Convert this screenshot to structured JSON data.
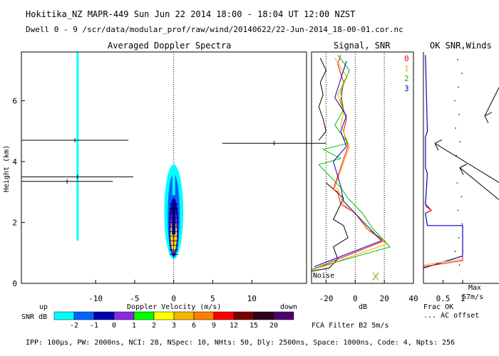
{
  "header": {
    "line1": "Hokitika_NZ  MAPR-449  Sun Jun 22 2014 18:00 - 18:04 UT 12:00 NZST",
    "line2": "Dwell  0 - 9   /scr/data/modular_prof/raw/wind/20140622/22-Jun-2014_18-00-01.cor.nc"
  },
  "footer": {
    "params": "IPP: 100μs, PW: 2000ns, NCI: 28, NSpec: 10, NHts: 50, Dly: 2500ns, Space: 1000ns, Code: 4, Npts: 256",
    "fca": "FCA Filter B2  5m/s"
  },
  "colors": {
    "snr_scale": [
      "#00ffff",
      "#0064ff",
      "#0000b0",
      "#8a2be2",
      "#00ff00",
      "#ffff00",
      "#f7b500",
      "#ff8000",
      "#ff0000",
      "#7a0000",
      "#30001a",
      "#50006a"
    ],
    "dwell_traces": [
      "#ff0000",
      "#ffa500",
      "#00c000",
      "#0000c0"
    ],
    "black": "#000000"
  },
  "chart_data": [
    {
      "type": "heatmap",
      "title": "Averaged Doppler Spectra",
      "xlabel": "Doppler Velocity (m/s)",
      "ylabel": "Height (km)",
      "xlim": [
        -19.5,
        17
      ],
      "ylim": [
        0,
        7.6
      ],
      "xticks": [
        "-10",
        "-5",
        "0",
        "5",
        "10"
      ],
      "xtick_values": [
        -10,
        -5,
        0,
        5,
        10
      ],
      "yticks": [
        "0",
        "2",
        "4",
        "6"
      ],
      "ytick_values": [
        0,
        2,
        4,
        6
      ],
      "left_label": "up",
      "right_label": "down",
      "zero_line": 0,
      "spectrum_core": {
        "velocity_center": 0,
        "height_range": [
          0.8,
          3.9
        ]
      },
      "vertical_artifact": {
        "velocity": -12.3,
        "height_range": [
          1.4,
          7.6
        ]
      },
      "error_bars": [
        {
          "height": 4.7,
          "velocity_range": [
            -19.5,
            -5.8
          ]
        },
        {
          "height": 4.6,
          "velocity_range": [
            6.2,
            19.5
          ]
        },
        {
          "height": 3.5,
          "velocity_range": [
            -19.5,
            -5.2
          ]
        },
        {
          "height": 3.35,
          "velocity_range": [
            -19.5,
            -7.8
          ]
        }
      ]
    },
    {
      "type": "line",
      "title": "Signal, SNR",
      "xlabel": "dB",
      "xlim": [
        -30,
        40
      ],
      "ylim": [
        0,
        7.6
      ],
      "xticks": [
        "-20",
        "0",
        "20",
        "40"
      ],
      "xtick_values": [
        -20,
        0,
        20,
        40
      ],
      "dotted_lines": [
        -20,
        0,
        20
      ],
      "noise_label": "Noise",
      "dwell_labels": [
        "0",
        "1",
        "2",
        "3"
      ],
      "series": [
        {
          "name": "signal",
          "points": [
            [
              -30,
              0.4
            ],
            [
              -18,
              0.5
            ],
            [
              -12,
              0.8
            ],
            [
              -15,
              1.2
            ],
            [
              -5,
              1.5
            ],
            [
              -8,
              1.9
            ],
            [
              -15,
              2.1
            ],
            [
              -12,
              2.4
            ],
            [
              -8,
              2.8
            ],
            [
              -15,
              3.1
            ],
            [
              -20,
              3.3
            ]
          ]
        },
        {
          "name": "signal_upper",
          "points": [
            [
              -25,
              4.7
            ],
            [
              -20,
              5.0
            ],
            [
              -22,
              5.4
            ],
            [
              -25,
              5.8
            ],
            [
              -22,
              6.2
            ],
            [
              -24,
              6.6
            ],
            [
              -20,
              7.0
            ],
            [
              -24,
              7.4
            ]
          ]
        },
        {
          "name": "dwell 0",
          "points": [
            [
              -30,
              0.45
            ],
            [
              20,
              1.4
            ],
            [
              8,
              1.8
            ],
            [
              0,
              2.3
            ],
            [
              -10,
              2.6
            ],
            [
              -12,
              3.0
            ],
            [
              -15,
              3.1
            ],
            [
              -5,
              4.5
            ],
            [
              -8,
              5.0
            ],
            [
              -6,
              5.4
            ],
            [
              -10,
              6.0
            ],
            [
              -8,
              6.6
            ],
            [
              -12,
              7.2
            ],
            [
              -10,
              7.5
            ]
          ]
        },
        {
          "name": "dwell 1",
          "points": [
            [
              -28,
              0.45
            ],
            [
              22,
              1.3
            ],
            [
              10,
              1.7
            ],
            [
              2,
              2.2
            ],
            [
              -8,
              2.6
            ],
            [
              -12,
              3.1
            ],
            [
              -14,
              3.15
            ],
            [
              -4,
              4.5
            ],
            [
              -10,
              5.2
            ],
            [
              -8,
              5.6
            ],
            [
              -12,
              6.2
            ],
            [
              -6,
              6.8
            ],
            [
              -14,
              7.4
            ]
          ]
        },
        {
          "name": "dwell 2",
          "points": [
            [
              -28,
              0.5
            ],
            [
              24,
              1.2
            ],
            [
              12,
              1.8
            ],
            [
              5,
              2.3
            ],
            [
              -5,
              2.8
            ],
            [
              -10,
              3.15
            ],
            [
              -25,
              3.9
            ],
            [
              -10,
              4.1
            ],
            [
              -22,
              4.4
            ],
            [
              -5,
              4.6
            ],
            [
              -14,
              5.2
            ],
            [
              -8,
              5.7
            ],
            [
              -10,
              6.3
            ],
            [
              -4,
              7.0
            ],
            [
              -12,
              7.5
            ]
          ]
        },
        {
          "name": "dwell 3",
          "points": [
            [
              -28,
              0.55
            ],
            [
              18,
              1.4
            ],
            [
              8,
              1.9
            ],
            [
              -2,
              2.4
            ],
            [
              -8,
              2.7
            ],
            [
              -10,
              3.2
            ],
            [
              -15,
              4.0
            ],
            [
              -6,
              4.5
            ],
            [
              -10,
              5.0
            ],
            [
              -6,
              5.5
            ],
            [
              -14,
              6.1
            ],
            [
              -10,
              6.7
            ],
            [
              -6,
              7.3
            ]
          ]
        }
      ]
    },
    {
      "type": "line",
      "title": "OK SNR,Winds",
      "xlabel": "Frac OK",
      "xlim": [
        0,
        1.2
      ],
      "ylim": [
        0,
        7.6
      ],
      "xticks": [
        "0.5",
        "1"
      ],
      "xtick_values": [
        0.5,
        1
      ],
      "legend": [
        "Frac OK",
        "... AC offset"
      ],
      "max_label": "Max",
      "max_value": "57m/s",
      "series": [
        {
          "name": "frac_ok",
          "points": [
            [
              0,
              0.5
            ],
            [
              1.0,
              0.9
            ],
            [
              1.0,
              1.9
            ],
            [
              0.1,
              1.9
            ],
            [
              0.05,
              2.3
            ],
            [
              0.2,
              2.4
            ],
            [
              0.05,
              2.6
            ],
            [
              0.1,
              3.6
            ],
            [
              0.05,
              3.8
            ],
            [
              0.05,
              4.8
            ],
            [
              0.1,
              5.0
            ],
            [
              0.05,
              7.5
            ]
          ]
        }
      ],
      "wind_barbs": [
        {
          "height": 4.6,
          "direction_from": "southeast"
        },
        {
          "height": 3.8,
          "direction_from": "southeast"
        },
        {
          "height": 5.5,
          "direction_from": "northeast"
        }
      ]
    }
  ],
  "snr_legend": {
    "label": "SNR dB",
    "ticks": [
      "-2",
      "-1",
      "0",
      "1",
      "2",
      "3",
      "6",
      "9",
      "12",
      "15",
      "20"
    ]
  }
}
